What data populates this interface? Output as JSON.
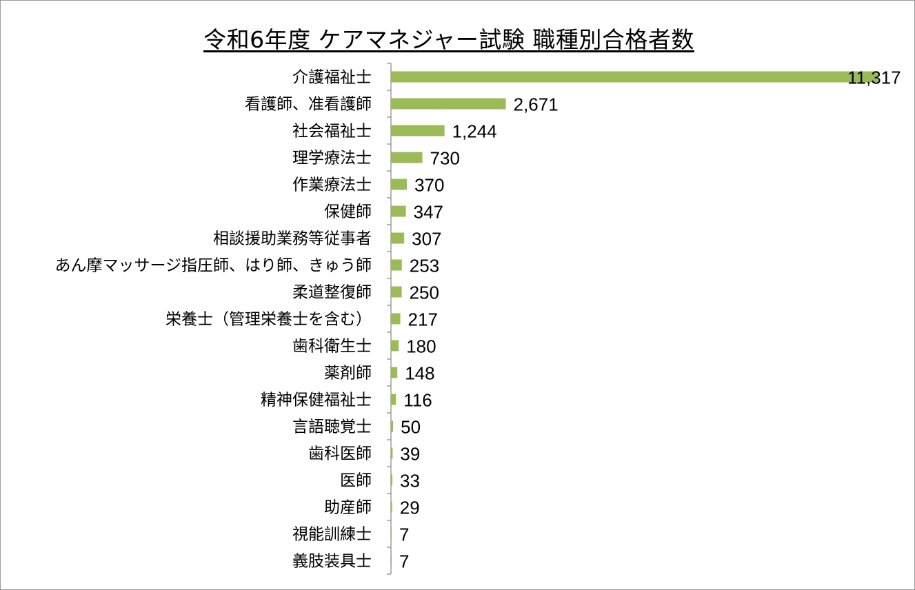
{
  "chart_data": {
    "type": "bar",
    "orientation": "horizontal",
    "title": "令和6年度 ケアマネジャー試験 職種別合格者数",
    "categories": [
      "介護福祉士",
      "看護師、准看護師",
      "社会福祉士",
      "理学療法士",
      "作業療法士",
      "保健師",
      "相談援助業務等従事者",
      "あん摩マッサージ指圧師、はり師、きゅう師",
      "柔道整復師",
      "栄養士（管理栄養士を含む）",
      "歯科衛生士",
      "薬剤師",
      "精神保健福祉士",
      "言語聴覚士",
      "歯科医師",
      "医師",
      "助産師",
      "視能訓練士",
      "義肢装具士"
    ],
    "values": [
      11317,
      2671,
      1244,
      730,
      370,
      347,
      307,
      253,
      250,
      217,
      180,
      148,
      116,
      50,
      39,
      33,
      29,
      7,
      7
    ],
    "value_labels": [
      "11,317",
      "2,671",
      "1,244",
      "730",
      "370",
      "347",
      "307",
      "253",
      "250",
      "217",
      "180",
      "148",
      "116",
      "50",
      "39",
      "33",
      "29",
      "7",
      "7"
    ],
    "bar_color": "#9bbb59",
    "axis_color": "#868686",
    "grid": false,
    "legend": false
  }
}
